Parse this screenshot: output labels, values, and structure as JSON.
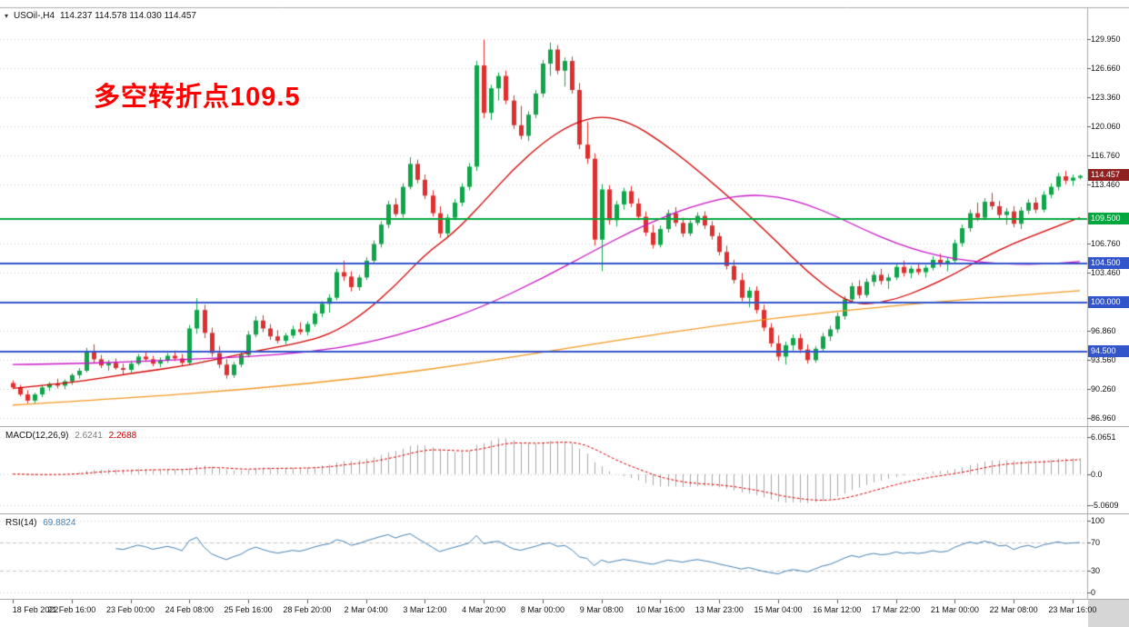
{
  "window": {
    "symbol": "USOil-,H4",
    "ohlc": "114.237 114.578 114.030 114.457",
    "marker_icon": "▾"
  },
  "annotation": {
    "text": "多空转折点109.5",
    "color": "#FF0000"
  },
  "colors": {
    "grid": "#D4D4D4",
    "separator": "#ABABAB",
    "axis_text": "#111111",
    "bg": "#FFFFFF"
  },
  "chart_data": {
    "type": "candlestick",
    "symbol": "USOil",
    "timeframe": "H4",
    "visible_bar_ohlc": {
      "open": 114.237,
      "high": 114.578,
      "low": 114.03,
      "close": 114.457
    },
    "price_range": [
      86.1,
      133.4
    ],
    "up_color": "#10A54A",
    "down_color": "#DE3030",
    "bars_per_label": 8,
    "price_ticks": [
      {
        "label": "129.950",
        "value": 129.95
      },
      {
        "label": "126.660",
        "value": 126.66
      },
      {
        "label": "123.360",
        "value": 123.36
      },
      {
        "label": "120.060",
        "value": 120.06
      },
      {
        "label": "116.760",
        "value": 116.76
      },
      {
        "label": "113.460",
        "value": 113.46
      },
      {
        "label": "106.760",
        "value": 106.76
      },
      {
        "label": "103.460",
        "value": 103.46
      },
      {
        "label": "96.860",
        "value": 96.86
      },
      {
        "label": "93.560",
        "value": 93.56
      },
      {
        "label": "90.260",
        "value": 90.26
      },
      {
        "label": "86.960",
        "value": 86.96
      }
    ],
    "hlines": [
      {
        "label": "109.500",
        "value": 109.5,
        "color": "#00A73C"
      },
      {
        "label": "104.500",
        "value": 104.5,
        "color": "#3355CC"
      },
      {
        "label": "100.000",
        "value": 100.0,
        "color": "#3355CC"
      },
      {
        "label": "94.500",
        "value": 94.5,
        "color": "#3355CC"
      }
    ],
    "current_price": {
      "label": "114.457",
      "value": 114.457,
      "bg": "#8F2020"
    },
    "time_labels": [
      "18 Feb 2022",
      "21 Feb 16:00",
      "23 Feb 00:00",
      "24 Feb 08:00",
      "25 Feb 16:00",
      "28 Feb 20:00",
      "2 Mar 04:00",
      "3 Mar 12:00",
      "4 Mar 20:00",
      "8 Mar 00:00",
      "9 Mar 08:00",
      "10 Mar 16:00",
      "13 Mar 23:00",
      "15 Mar 04:00",
      "16 Mar 12:00",
      "17 Mar 22:00",
      "21 Mar 00:00",
      "22 Mar 08:00",
      "23 Mar 16:00"
    ],
    "candles": [
      [
        90.9,
        91.2,
        90.2,
        90.4
      ],
      [
        90.4,
        90.7,
        89.4,
        89.6
      ],
      [
        89.6,
        90.1,
        88.6,
        88.9
      ],
      [
        88.9,
        89.8,
        88.5,
        89.6
      ],
      [
        89.6,
        90.6,
        89.3,
        90.4
      ],
      [
        90.4,
        91.0,
        90.0,
        90.8
      ],
      [
        90.8,
        91.4,
        90.3,
        90.6
      ],
      [
        90.6,
        91.3,
        90.2,
        91.1
      ],
      [
        91.1,
        92.0,
        90.7,
        91.8
      ],
      [
        91.8,
        92.6,
        91.4,
        92.3
      ],
      [
        92.3,
        94.9,
        92.1,
        94.4
      ],
      [
        94.4,
        95.3,
        93.2,
        93.6
      ],
      [
        93.6,
        94.1,
        92.6,
        92.9
      ],
      [
        92.9,
        93.5,
        92.3,
        93.2
      ],
      [
        93.2,
        93.7,
        92.4,
        92.6
      ],
      [
        92.6,
        93.1,
        91.9,
        92.4
      ],
      [
        92.4,
        93.4,
        92.1,
        93.1
      ],
      [
        93.1,
        94.2,
        92.9,
        93.9
      ],
      [
        93.9,
        94.5,
        93.3,
        93.6
      ],
      [
        93.6,
        94.0,
        92.8,
        93.1
      ],
      [
        93.1,
        93.8,
        92.7,
        93.5
      ],
      [
        93.5,
        94.3,
        93.2,
        94.0
      ],
      [
        94.0,
        94.6,
        93.4,
        93.7
      ],
      [
        93.7,
        94.2,
        92.9,
        93.2
      ],
      [
        93.2,
        97.5,
        93.0,
        97.1
      ],
      [
        97.1,
        100.54,
        96.5,
        99.2
      ],
      [
        99.2,
        99.8,
        96.0,
        96.6
      ],
      [
        96.6,
        97.2,
        93.9,
        94.3
      ],
      [
        94.3,
        95.1,
        92.6,
        93.0
      ],
      [
        93.0,
        93.6,
        91.4,
        91.8
      ],
      [
        91.8,
        93.3,
        91.5,
        93.0
      ],
      [
        93.0,
        94.4,
        92.7,
        94.1
      ],
      [
        94.1,
        96.8,
        93.8,
        96.4
      ],
      [
        96.4,
        98.5,
        96.1,
        98.0
      ],
      [
        98.0,
        98.6,
        96.7,
        97.1
      ],
      [
        97.1,
        97.6,
        95.8,
        96.2
      ],
      [
        96.2,
        96.9,
        95.4,
        95.7
      ],
      [
        95.7,
        96.6,
        95.3,
        96.3
      ],
      [
        96.3,
        97.4,
        96.0,
        97.0
      ],
      [
        97.0,
        97.8,
        96.4,
        96.7
      ],
      [
        96.7,
        97.9,
        96.3,
        97.6
      ],
      [
        97.6,
        99.1,
        97.3,
        98.8
      ],
      [
        98.8,
        100.2,
        98.4,
        99.9
      ],
      [
        99.9,
        101.0,
        98.9,
        100.6
      ],
      [
        100.6,
        103.9,
        100.3,
        103.5
      ],
      [
        103.5,
        104.8,
        102.5,
        103.0
      ],
      [
        103.0,
        103.6,
        101.3,
        101.8
      ],
      [
        101.8,
        103.2,
        101.4,
        102.9
      ],
      [
        102.9,
        105.2,
        102.6,
        104.8
      ],
      [
        104.8,
        107.1,
        104.4,
        106.7
      ],
      [
        106.7,
        109.3,
        106.3,
        108.9
      ],
      [
        108.9,
        111.6,
        108.5,
        111.2
      ],
      [
        111.2,
        111.9,
        109.8,
        110.1
      ],
      [
        110.1,
        113.6,
        109.7,
        113.2
      ],
      [
        113.2,
        116.57,
        112.9,
        115.8
      ],
      [
        115.8,
        116.3,
        113.6,
        114.0
      ],
      [
        114.0,
        114.6,
        111.8,
        112.2
      ],
      [
        112.2,
        112.8,
        109.8,
        110.2
      ],
      [
        110.2,
        111.0,
        107.4,
        107.9
      ],
      [
        107.9,
        110.1,
        107.5,
        109.7
      ],
      [
        109.7,
        111.8,
        109.4,
        111.4
      ],
      [
        111.4,
        113.6,
        111.0,
        113.2
      ],
      [
        113.2,
        115.9,
        112.8,
        115.5
      ],
      [
        115.5,
        127.5,
        115.0,
        127.0
      ],
      [
        127.0,
        129.95,
        121.0,
        121.6
      ],
      [
        121.6,
        124.8,
        120.8,
        124.4
      ],
      [
        124.4,
        126.2,
        123.0,
        125.8
      ],
      [
        125.8,
        126.4,
        122.6,
        123.0
      ],
      [
        123.0,
        123.6,
        119.8,
        120.2
      ],
      [
        120.2,
        122.4,
        118.6,
        119.0
      ],
      [
        119.0,
        121.8,
        118.4,
        121.4
      ],
      [
        121.4,
        124.2,
        121.0,
        123.8
      ],
      [
        123.8,
        127.6,
        123.4,
        127.2
      ],
      [
        127.2,
        129.6,
        125.8,
        128.8
      ],
      [
        128.8,
        129.3,
        126.0,
        126.4
      ],
      [
        126.4,
        127.9,
        124.6,
        127.5
      ],
      [
        127.5,
        128.0,
        123.8,
        124.2
      ],
      [
        124.2,
        125.0,
        117.5,
        118.0
      ],
      [
        118.0,
        120.6,
        115.8,
        116.4
      ],
      [
        116.4,
        117.0,
        106.5,
        107.2
      ],
      [
        107.2,
        113.5,
        103.6,
        112.9
      ],
      [
        112.9,
        113.4,
        108.9,
        109.4
      ],
      [
        109.4,
        111.6,
        108.7,
        111.2
      ],
      [
        111.2,
        113.1,
        110.6,
        112.7
      ],
      [
        112.7,
        113.3,
        110.9,
        111.3
      ],
      [
        111.3,
        111.9,
        109.4,
        109.8
      ],
      [
        109.8,
        110.4,
        107.6,
        108.0
      ],
      [
        108.0,
        108.9,
        106.2,
        106.6
      ],
      [
        106.6,
        108.8,
        106.3,
        108.4
      ],
      [
        108.4,
        110.6,
        108.0,
        110.2
      ],
      [
        110.2,
        110.9,
        108.7,
        109.1
      ],
      [
        109.1,
        109.7,
        107.5,
        107.9
      ],
      [
        107.9,
        109.4,
        107.6,
        109.1
      ],
      [
        109.1,
        110.3,
        108.8,
        109.9
      ],
      [
        109.9,
        110.4,
        108.4,
        108.8
      ],
      [
        108.8,
        109.3,
        107.2,
        107.6
      ],
      [
        107.6,
        108.0,
        105.4,
        105.8
      ],
      [
        105.8,
        106.5,
        103.8,
        104.2
      ],
      [
        104.2,
        104.9,
        102.2,
        102.6
      ],
      [
        102.6,
        103.4,
        100.2,
        100.6
      ],
      [
        100.6,
        101.8,
        99.5,
        101.4
      ],
      [
        101.4,
        101.9,
        98.8,
        99.2
      ],
      [
        99.2,
        99.8,
        96.8,
        97.2
      ],
      [
        97.2,
        97.7,
        95.0,
        95.4
      ],
      [
        95.4,
        96.3,
        93.4,
        93.9
      ],
      [
        93.9,
        95.6,
        93.0,
        95.2
      ],
      [
        95.2,
        96.4,
        94.6,
        96.0
      ],
      [
        96.0,
        96.5,
        94.3,
        94.7
      ],
      [
        94.7,
        95.3,
        93.1,
        93.5
      ],
      [
        93.5,
        95.1,
        93.2,
        94.8
      ],
      [
        94.8,
        96.6,
        94.4,
        96.2
      ],
      [
        96.2,
        97.4,
        95.7,
        97.0
      ],
      [
        97.0,
        98.9,
        96.6,
        98.5
      ],
      [
        98.5,
        100.8,
        98.1,
        100.4
      ],
      [
        100.4,
        102.3,
        100.0,
        101.9
      ],
      [
        101.9,
        102.6,
        100.5,
        100.9
      ],
      [
        100.9,
        102.8,
        100.6,
        102.4
      ],
      [
        102.4,
        103.6,
        101.9,
        103.2
      ],
      [
        103.2,
        103.9,
        102.1,
        102.5
      ],
      [
        102.5,
        103.3,
        101.6,
        102.9
      ],
      [
        102.9,
        104.5,
        102.6,
        104.1
      ],
      [
        104.1,
        104.8,
        103.0,
        103.4
      ],
      [
        103.4,
        104.2,
        102.8,
        103.9
      ],
      [
        103.9,
        104.6,
        103.2,
        103.5
      ],
      [
        103.5,
        104.3,
        102.9,
        104.0
      ],
      [
        104.0,
        105.3,
        103.7,
        104.9
      ],
      [
        104.9,
        105.6,
        104.1,
        104.4
      ],
      [
        104.4,
        105.1,
        103.6,
        104.8
      ],
      [
        104.8,
        107.2,
        104.5,
        106.8
      ],
      [
        106.8,
        108.9,
        106.4,
        108.5
      ],
      [
        108.5,
        110.6,
        108.1,
        110.2
      ],
      [
        110.2,
        111.4,
        109.3,
        109.7
      ],
      [
        109.7,
        111.9,
        109.4,
        111.5
      ],
      [
        111.5,
        112.5,
        110.6,
        111.0
      ],
      [
        111.0,
        111.6,
        109.6,
        110.0
      ],
      [
        110.0,
        110.8,
        108.9,
        110.4
      ],
      [
        110.4,
        111.0,
        108.6,
        109.0
      ],
      [
        109.0,
        110.9,
        108.4,
        110.5
      ],
      [
        110.5,
        111.8,
        110.1,
        111.4
      ],
      [
        111.4,
        112.0,
        110.2,
        110.6
      ],
      [
        110.6,
        112.7,
        110.3,
        112.3
      ],
      [
        112.3,
        113.6,
        111.9,
        113.2
      ],
      [
        113.2,
        114.8,
        112.8,
        114.4
      ],
      [
        114.4,
        115.0,
        113.5,
        113.9
      ],
      [
        113.9,
        114.6,
        113.3,
        114.24
      ],
      [
        114.24,
        114.578,
        114.03,
        114.457
      ]
    ],
    "ma_lines": [
      {
        "name": "fast-ma",
        "color": "#D40000",
        "points": [
          [
            0,
            90.3
          ],
          [
            8,
            90.9
          ],
          [
            16,
            92.0
          ],
          [
            24,
            92.9
          ],
          [
            32,
            94.4
          ],
          [
            40,
            95.6
          ],
          [
            44,
            96.8
          ],
          [
            48,
            99.0
          ],
          [
            52,
            102.0
          ],
          [
            56,
            105.5
          ],
          [
            60,
            108.0
          ],
          [
            64,
            111.5
          ],
          [
            68,
            115.2
          ],
          [
            72,
            118.2
          ],
          [
            76,
            120.4
          ],
          [
            80,
            121.3
          ],
          [
            84,
            120.5
          ],
          [
            88,
            118.4
          ],
          [
            92,
            115.8
          ],
          [
            96,
            113.0
          ],
          [
            100,
            110.0
          ],
          [
            104,
            106.8
          ],
          [
            108,
            103.5
          ],
          [
            112,
            100.9
          ],
          [
            114,
            100.1
          ],
          [
            116,
            99.8
          ],
          [
            120,
            100.4
          ],
          [
            124,
            101.7
          ],
          [
            128,
            103.3
          ],
          [
            132,
            105.2
          ],
          [
            136,
            106.8
          ],
          [
            140,
            108.1
          ],
          [
            145,
            109.7
          ]
        ]
      },
      {
        "name": "mid-ma",
        "color": "#C816C8",
        "points": [
          [
            0,
            93.0
          ],
          [
            8,
            93.1
          ],
          [
            16,
            93.3
          ],
          [
            24,
            93.6
          ],
          [
            32,
            93.9
          ],
          [
            40,
            94.4
          ],
          [
            48,
            95.4
          ],
          [
            56,
            97.2
          ],
          [
            64,
            99.6
          ],
          [
            72,
            102.8
          ],
          [
            80,
            106.4
          ],
          [
            84,
            108.1
          ],
          [
            88,
            109.6
          ],
          [
            92,
            110.9
          ],
          [
            96,
            111.8
          ],
          [
            100,
            112.3
          ],
          [
            104,
            112.1
          ],
          [
            108,
            111.2
          ],
          [
            112,
            109.8
          ],
          [
            116,
            108.2
          ],
          [
            120,
            106.8
          ],
          [
            124,
            105.7
          ],
          [
            128,
            105.0
          ],
          [
            132,
            104.6
          ],
          [
            136,
            104.4
          ],
          [
            140,
            104.4
          ],
          [
            145,
            104.7
          ]
        ]
      },
      {
        "name": "slow-ma",
        "color": "#F59A23",
        "points": [
          [
            0,
            88.4
          ],
          [
            16,
            89.2
          ],
          [
            32,
            90.2
          ],
          [
            48,
            91.5
          ],
          [
            64,
            93.3
          ],
          [
            80,
            95.5
          ],
          [
            96,
            97.5
          ],
          [
            112,
            99.1
          ],
          [
            128,
            100.3
          ],
          [
            145,
            101.4
          ]
        ]
      }
    ],
    "macd": {
      "title": "MACD(12,26,9)",
      "value_main": "2.6241",
      "value_signal": "2.2688",
      "fast": 12,
      "slow": 26,
      "signal": 9,
      "axis": [
        {
          "label": "6.0651",
          "value": 6.0651
        },
        {
          "label": "0.0",
          "value": 0
        },
        {
          "label": "-5.0609",
          "value": -5.0609
        }
      ],
      "hist_color": "#A8A8A8",
      "signal_color": "#E00000"
    },
    "rsi": {
      "title": "RSI(14)",
      "value": "69.8824",
      "period": 14,
      "axis": [
        {
          "label": "100",
          "value": 100
        },
        {
          "label": "70",
          "value": 70
        },
        {
          "label": "30",
          "value": 30
        },
        {
          "label": "0",
          "value": 0
        }
      ],
      "line_color": "#4682B4",
      "level_color": "#C6C6C6"
    }
  }
}
